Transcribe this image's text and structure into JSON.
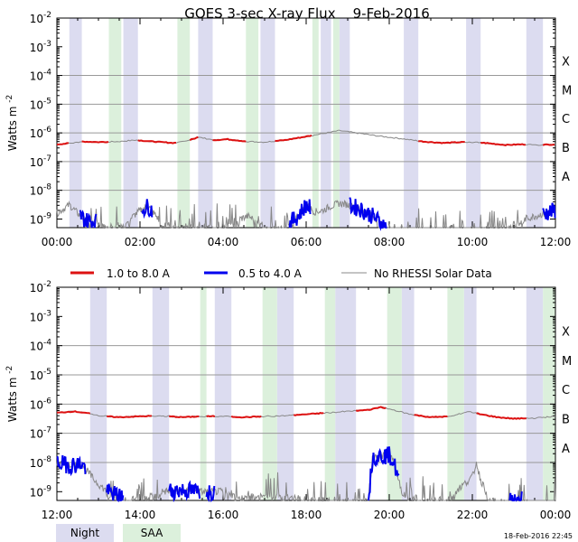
{
  "title": "GOES 3-sec X-ray Flux    9-Feb-2016",
  "timestamp": "18-Feb-2016 22:45",
  "colors": {
    "long_channel": "#dd1111",
    "short_channel": "#0000ee",
    "no_rhessi": "#888888",
    "night_band": "#dcdcf0",
    "saa_band": "#dcf0dc",
    "grid": "#999999"
  },
  "legend": {
    "long_label": "1.0 to 8.0 A",
    "short_label": "0.5 to 4.0 A",
    "gray_label": "No RHESSI Solar Data"
  },
  "band_legend": {
    "night": "Night",
    "saa": "SAA"
  },
  "chart_data": [
    {
      "type": "line",
      "panel": "top",
      "ylabel_prefix": "Watts m",
      "ylabel_exp": "-2",
      "y_scale": "log",
      "ylim_exp": [
        -9.3,
        -2
      ],
      "y_ticks": [
        {
          "base": "10",
          "exp": "-2",
          "v": -2
        },
        {
          "base": "10",
          "exp": "-3",
          "v": -3
        },
        {
          "base": "10",
          "exp": "-4",
          "v": -4
        },
        {
          "base": "10",
          "exp": "-5",
          "v": -5
        },
        {
          "base": "10",
          "exp": "-6",
          "v": -6
        },
        {
          "base": "10",
          "exp": "-7",
          "v": -7
        },
        {
          "base": "10",
          "exp": "-8",
          "v": -8
        },
        {
          "base": "10",
          "exp": "-9",
          "v": -9
        }
      ],
      "flare_classes": [
        {
          "label": "X",
          "v": -3.5
        },
        {
          "label": "M",
          "v": -4.5
        },
        {
          "label": "C",
          "v": -5.5
        },
        {
          "label": "B",
          "v": -6.5
        },
        {
          "label": "A",
          "v": -7.5
        }
      ],
      "xlim_hours": [
        0,
        12
      ],
      "x_ticks": [
        {
          "label": "00:00",
          "h": 0
        },
        {
          "label": "02:00",
          "h": 2
        },
        {
          "label": "04:00",
          "h": 4
        },
        {
          "label": "06:00",
          "h": 6
        },
        {
          "label": "08:00",
          "h": 8
        },
        {
          "label": "10:00",
          "h": 10
        },
        {
          "label": "12:00",
          "h": 12
        }
      ],
      "night_bands": [
        [
          0.3,
          0.6
        ],
        [
          1.6,
          1.95
        ],
        [
          3.4,
          3.75
        ],
        [
          4.9,
          5.25
        ],
        [
          6.35,
          6.6
        ],
        [
          6.8,
          7.05
        ],
        [
          8.35,
          8.7
        ],
        [
          9.85,
          10.2
        ],
        [
          11.3,
          11.7
        ]
      ],
      "saa_bands": [
        [
          1.25,
          1.55
        ],
        [
          2.9,
          3.2
        ],
        [
          4.55,
          4.85
        ],
        [
          6.15,
          6.3
        ],
        [
          6.65,
          6.8
        ]
      ],
      "long_channel": [
        [
          0.0,
          -6.4
        ],
        [
          0.4,
          -6.35
        ],
        [
          0.6,
          -6.3
        ],
        [
          1.0,
          -6.32
        ],
        [
          1.5,
          -6.3
        ],
        [
          1.9,
          -6.25
        ],
        [
          2.3,
          -6.3
        ],
        [
          2.8,
          -6.35
        ],
        [
          3.1,
          -6.3
        ],
        [
          3.4,
          -6.15
        ],
        [
          3.8,
          -6.25
        ],
        [
          4.1,
          -6.22
        ],
        [
          4.6,
          -6.3
        ],
        [
          5.0,
          -6.32
        ],
        [
          5.5,
          -6.25
        ],
        [
          5.9,
          -6.15
        ],
        [
          6.3,
          -6.05
        ],
        [
          6.8,
          -5.92
        ],
        [
          7.3,
          -6.02
        ],
        [
          7.8,
          -6.12
        ],
        [
          8.3,
          -6.2
        ],
        [
          8.8,
          -6.3
        ],
        [
          9.3,
          -6.35
        ],
        [
          9.8,
          -6.32
        ],
        [
          10.3,
          -6.35
        ],
        [
          10.8,
          -6.42
        ],
        [
          11.2,
          -6.4
        ],
        [
          11.6,
          -6.42
        ],
        [
          12.0,
          -6.4
        ]
      ],
      "long_red_segments": [
        [
          0.0,
          0.3
        ],
        [
          0.6,
          1.25
        ],
        [
          1.95,
          2.9
        ],
        [
          3.2,
          3.4
        ],
        [
          3.75,
          4.55
        ],
        [
          5.25,
          6.15
        ],
        [
          8.7,
          9.85
        ],
        [
          10.2,
          11.3
        ],
        [
          11.7,
          12.0
        ]
      ],
      "short_channel": [
        [
          0.0,
          -8.8
        ],
        [
          0.3,
          -8.5
        ],
        [
          0.5,
          -8.8
        ],
        [
          0.7,
          -9.05
        ],
        [
          1.0,
          -9.1
        ],
        [
          1.6,
          -9.2
        ],
        [
          2.0,
          -8.7
        ],
        [
          2.2,
          -8.55
        ],
        [
          2.5,
          -9.1
        ],
        [
          3.0,
          -9.2
        ],
        [
          4.0,
          -9.2
        ],
        [
          4.6,
          -8.9
        ],
        [
          5.0,
          -9.2
        ],
        [
          5.5,
          -9.25
        ],
        [
          5.8,
          -8.9
        ],
        [
          6.0,
          -8.5
        ],
        [
          6.2,
          -8.75
        ],
        [
          6.4,
          -8.7
        ],
        [
          6.6,
          -8.55
        ],
        [
          6.8,
          -8.45
        ],
        [
          7.0,
          -8.5
        ],
        [
          7.3,
          -8.65
        ],
        [
          7.6,
          -8.9
        ],
        [
          7.9,
          -9.25
        ],
        [
          8.5,
          -9.3
        ],
        [
          10.0,
          -9.3
        ],
        [
          11.0,
          -9.1
        ],
        [
          11.5,
          -8.9
        ],
        [
          12.0,
          -8.7
        ]
      ],
      "short_blue_segments": [
        [
          0.55,
          0.95
        ],
        [
          2.05,
          2.3
        ],
        [
          5.6,
          6.1
        ],
        [
          7.05,
          7.95
        ],
        [
          11.7,
          12.0
        ]
      ]
    },
    {
      "type": "line",
      "panel": "bottom",
      "ylabel_prefix": "Watts m",
      "ylabel_exp": "-2",
      "y_scale": "log",
      "ylim_exp": [
        -9.3,
        -2
      ],
      "y_ticks": [
        {
          "base": "10",
          "exp": "-2",
          "v": -2
        },
        {
          "base": "10",
          "exp": "-3",
          "v": -3
        },
        {
          "base": "10",
          "exp": "-4",
          "v": -4
        },
        {
          "base": "10",
          "exp": "-5",
          "v": -5
        },
        {
          "base": "10",
          "exp": "-6",
          "v": -6
        },
        {
          "base": "10",
          "exp": "-7",
          "v": -7
        },
        {
          "base": "10",
          "exp": "-8",
          "v": -8
        },
        {
          "base": "10",
          "exp": "-9",
          "v": -9
        }
      ],
      "flare_classes": [
        {
          "label": "X",
          "v": -3.5
        },
        {
          "label": "M",
          "v": -4.5
        },
        {
          "label": "C",
          "v": -5.5
        },
        {
          "label": "B",
          "v": -6.5
        },
        {
          "label": "A",
          "v": -7.5
        }
      ],
      "xlim_hours": [
        12,
        24
      ],
      "x_ticks": [
        {
          "label": "12:00",
          "h": 12
        },
        {
          "label": "14:00",
          "h": 14
        },
        {
          "label": "16:00",
          "h": 16
        },
        {
          "label": "18:00",
          "h": 18
        },
        {
          "label": "20:00",
          "h": 20
        },
        {
          "label": "22:00",
          "h": 22
        },
        {
          "label": "00:00",
          "h": 24
        }
      ],
      "night_bands": [
        [
          12.8,
          13.2
        ],
        [
          14.3,
          14.7
        ],
        [
          15.8,
          16.2
        ],
        [
          17.3,
          17.7
        ],
        [
          18.7,
          19.2
        ],
        [
          20.3,
          20.6
        ],
        [
          21.8,
          22.1
        ],
        [
          23.3,
          23.7
        ]
      ],
      "saa_bands": [
        [
          15.45,
          15.6
        ],
        [
          16.95,
          17.3
        ],
        [
          18.45,
          18.7
        ],
        [
          19.95,
          20.3
        ],
        [
          21.4,
          21.8
        ],
        [
          23.7,
          24.0
        ]
      ],
      "long_channel": [
        [
          12.0,
          -6.3
        ],
        [
          12.4,
          -6.25
        ],
        [
          12.7,
          -6.3
        ],
        [
          13.0,
          -6.4
        ],
        [
          13.5,
          -6.45
        ],
        [
          14.0,
          -6.42
        ],
        [
          14.5,
          -6.4
        ],
        [
          15.0,
          -6.45
        ],
        [
          15.5,
          -6.42
        ],
        [
          16.0,
          -6.42
        ],
        [
          16.5,
          -6.45
        ],
        [
          17.0,
          -6.42
        ],
        [
          17.5,
          -6.4
        ],
        [
          18.0,
          -6.35
        ],
        [
          18.5,
          -6.3
        ],
        [
          19.0,
          -6.25
        ],
        [
          19.5,
          -6.2
        ],
        [
          19.8,
          -6.1
        ],
        [
          20.1,
          -6.2
        ],
        [
          20.5,
          -6.35
        ],
        [
          21.0,
          -6.45
        ],
        [
          21.5,
          -6.42
        ],
        [
          21.9,
          -6.25
        ],
        [
          22.2,
          -6.35
        ],
        [
          22.6,
          -6.45
        ],
        [
          23.0,
          -6.5
        ],
        [
          23.5,
          -6.48
        ],
        [
          24.0,
          -6.42
        ]
      ],
      "long_red_segments": [
        [
          12.0,
          12.8
        ],
        [
          13.2,
          14.3
        ],
        [
          14.7,
          15.45
        ],
        [
          15.6,
          15.8
        ],
        [
          16.2,
          16.95
        ],
        [
          17.7,
          18.45
        ],
        [
          19.2,
          19.95
        ],
        [
          20.6,
          21.4
        ],
        [
          22.1,
          23.3
        ]
      ],
      "short_channel": [
        [
          12.0,
          -8.0
        ],
        [
          12.3,
          -8.1
        ],
        [
          12.6,
          -8.05
        ],
        [
          12.9,
          -8.6
        ],
        [
          13.2,
          -9.0
        ],
        [
          13.6,
          -9.2
        ],
        [
          14.0,
          -9.1
        ],
        [
          14.5,
          -9.0
        ],
        [
          15.0,
          -8.95
        ],
        [
          15.5,
          -9.0
        ],
        [
          16.0,
          -9.0
        ],
        [
          16.5,
          -9.1
        ],
        [
          17.0,
          -9.0
        ],
        [
          17.5,
          -9.1
        ],
        [
          18.0,
          -9.1
        ],
        [
          18.5,
          -9.2
        ],
        [
          19.0,
          -9.25
        ],
        [
          19.5,
          -9.2
        ],
        [
          19.6,
          -7.8
        ],
        [
          20.0,
          -7.75
        ],
        [
          20.1,
          -7.95
        ],
        [
          20.3,
          -9.0
        ],
        [
          21.0,
          -9.2
        ],
        [
          21.5,
          -9.1
        ],
        [
          22.0,
          -8.5
        ],
        [
          22.1,
          -8.0
        ],
        [
          22.2,
          -8.6
        ],
        [
          22.4,
          -9.2
        ],
        [
          23.0,
          -9.25
        ],
        [
          24.0,
          -9.3
        ]
      ],
      "short_blue_segments": [
        [
          12.0,
          12.7
        ],
        [
          13.2,
          13.6
        ],
        [
          14.7,
          15.45
        ],
        [
          15.6,
          15.8
        ],
        [
          19.5,
          20.25
        ],
        [
          22.9,
          23.2
        ]
      ]
    }
  ]
}
